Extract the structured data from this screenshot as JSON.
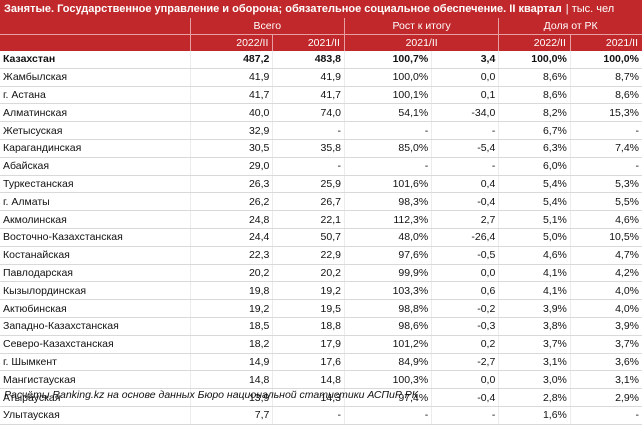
{
  "title": "Занятые. Государственное управление и оборона; обязательное социальное обеспечение. II квартал",
  "unit": "| тыс. чел",
  "headers": {
    "group1": "Всего",
    "group2": "Рост к итогу",
    "group3": "Доля от РК",
    "sub": [
      "2022/II",
      "2021/II",
      "2021/II",
      "2022/II",
      "2021/II"
    ]
  },
  "rows": [
    {
      "name": "Казахстан",
      "v1": "487,2",
      "v2": "483,8",
      "v3": "100,7%",
      "v4": "3,4",
      "v5": "100,0%",
      "v6": "100,0%"
    },
    {
      "name": "Жамбылская",
      "v1": "41,9",
      "v2": "41,9",
      "v3": "100,0%",
      "v4": "0,0",
      "v5": "8,6%",
      "v6": "8,7%"
    },
    {
      "name": "г. Астана",
      "v1": "41,7",
      "v2": "41,7",
      "v3": "100,1%",
      "v4": "0,1",
      "v5": "8,6%",
      "v6": "8,6%"
    },
    {
      "name": "Алматинская",
      "v1": "40,0",
      "v2": "74,0",
      "v3": "54,1%",
      "v4": "-34,0",
      "v5": "8,2%",
      "v6": "15,3%"
    },
    {
      "name": "Жетысуская",
      "v1": "32,9",
      "v2": "-",
      "v3": "-",
      "v4": "-",
      "v5": "6,7%",
      "v6": "-"
    },
    {
      "name": "Карагандинская",
      "v1": "30,5",
      "v2": "35,8",
      "v3": "85,0%",
      "v4": "-5,4",
      "v5": "6,3%",
      "v6": "7,4%"
    },
    {
      "name": "Абайская",
      "v1": "29,0",
      "v2": "-",
      "v3": "-",
      "v4": "-",
      "v5": "6,0%",
      "v6": "-"
    },
    {
      "name": "Туркестанская",
      "v1": "26,3",
      "v2": "25,9",
      "v3": "101,6%",
      "v4": "0,4",
      "v5": "5,4%",
      "v6": "5,3%"
    },
    {
      "name": "г. Алматы",
      "v1": "26,2",
      "v2": "26,7",
      "v3": "98,3%",
      "v4": "-0,4",
      "v5": "5,4%",
      "v6": "5,5%"
    },
    {
      "name": "Акмолинская",
      "v1": "24,8",
      "v2": "22,1",
      "v3": "112,3%",
      "v4": "2,7",
      "v5": "5,1%",
      "v6": "4,6%"
    },
    {
      "name": "Восточно-Казахстанская",
      "v1": "24,4",
      "v2": "50,7",
      "v3": "48,0%",
      "v4": "-26,4",
      "v5": "5,0%",
      "v6": "10,5%"
    },
    {
      "name": "Костанайская",
      "v1": "22,3",
      "v2": "22,9",
      "v3": "97,6%",
      "v4": "-0,5",
      "v5": "4,6%",
      "v6": "4,7%"
    },
    {
      "name": "Павлодарская",
      "v1": "20,2",
      "v2": "20,2",
      "v3": "99,9%",
      "v4": "0,0",
      "v5": "4,1%",
      "v6": "4,2%"
    },
    {
      "name": "Кызылординская",
      "v1": "19,8",
      "v2": "19,2",
      "v3": "103,3%",
      "v4": "0,6",
      "v5": "4,1%",
      "v6": "4,0%"
    },
    {
      "name": "Актюбинская",
      "v1": "19,2",
      "v2": "19,5",
      "v3": "98,8%",
      "v4": "-0,2",
      "v5": "3,9%",
      "v6": "4,0%"
    },
    {
      "name": "Западно-Казахстанская",
      "v1": "18,5",
      "v2": "18,8",
      "v3": "98,6%",
      "v4": "-0,3",
      "v5": "3,8%",
      "v6": "3,9%"
    },
    {
      "name": "Северо-Казахстанская",
      "v1": "18,2",
      "v2": "17,9",
      "v3": "101,2%",
      "v4": "0,2",
      "v5": "3,7%",
      "v6": "3,7%"
    },
    {
      "name": "г. Шымкент",
      "v1": "14,9",
      "v2": "17,6",
      "v3": "84,9%",
      "v4": "-2,7",
      "v5": "3,1%",
      "v6": "3,6%"
    },
    {
      "name": "Мангистауская",
      "v1": "14,8",
      "v2": "14,8",
      "v3": "100,3%",
      "v4": "0,0",
      "v5": "3,0%",
      "v6": "3,1%"
    },
    {
      "name": "Атырауская",
      "v1": "13,9",
      "v2": "14,3",
      "v3": "97,4%",
      "v4": "-0,4",
      "v5": "2,8%",
      "v6": "2,9%"
    },
    {
      "name": "Улытауская",
      "v1": "7,7",
      "v2": "-",
      "v3": "-",
      "v4": "-",
      "v5": "1,6%",
      "v6": "-"
    }
  ],
  "footer": "Расчёты Ranking.kz на основе данных Бюро национальной статистики АСПиР РК",
  "colors": {
    "header_bg": "#c0282b",
    "header_text": "#ffffff"
  }
}
